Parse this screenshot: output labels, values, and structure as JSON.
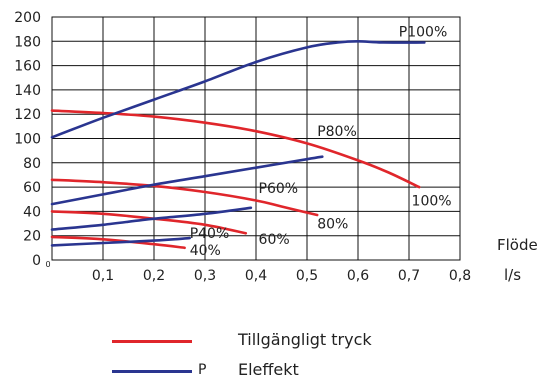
{
  "chart_data": {
    "type": "line",
    "x_ticks": [
      "0",
      "0,1",
      "0,2",
      "0,3",
      "0,4",
      "0,5",
      "0,6",
      "0,7",
      "0,8"
    ],
    "y_ticks": [
      "0",
      "20",
      "40",
      "60",
      "80",
      "100",
      "120",
      "140",
      "160",
      "180",
      "200"
    ],
    "xlim": [
      0,
      0.8
    ],
    "ylim": [
      0,
      200
    ],
    "grid": true,
    "xlabel": "Flöde",
    "xunit": "l/s",
    "colors": {
      "pressure": "#e0262b",
      "power": "#2a3590"
    },
    "series": [
      {
        "kind": "pressure",
        "points": [
          [
            0,
            123
          ],
          [
            0.1,
            121
          ],
          [
            0.2,
            118
          ],
          [
            0.3,
            113
          ],
          [
            0.4,
            106
          ],
          [
            0.5,
            96
          ],
          [
            0.6,
            82
          ],
          [
            0.66,
            72
          ],
          [
            0.72,
            60
          ]
        ]
      },
      {
        "kind": "pressure",
        "points": [
          [
            0,
            66
          ],
          [
            0.1,
            64
          ],
          [
            0.2,
            61
          ],
          [
            0.3,
            56
          ],
          [
            0.4,
            49
          ],
          [
            0.45,
            44
          ],
          [
            0.52,
            37
          ]
        ]
      },
      {
        "kind": "pressure",
        "points": [
          [
            0,
            40
          ],
          [
            0.1,
            38
          ],
          [
            0.2,
            34
          ],
          [
            0.3,
            29
          ],
          [
            0.38,
            22
          ]
        ]
      },
      {
        "kind": "pressure",
        "points": [
          [
            0,
            19
          ],
          [
            0.1,
            17
          ],
          [
            0.2,
            13
          ],
          [
            0.26,
            10
          ]
        ]
      },
      {
        "kind": "power",
        "points": [
          [
            0,
            101
          ],
          [
            0.1,
            117
          ],
          [
            0.2,
            132
          ],
          [
            0.3,
            147
          ],
          [
            0.4,
            163
          ],
          [
            0.5,
            175
          ],
          [
            0.56,
            179
          ],
          [
            0.6,
            180
          ],
          [
            0.65,
            179
          ],
          [
            0.73,
            179
          ]
        ]
      },
      {
        "kind": "power",
        "points": [
          [
            0,
            46
          ],
          [
            0.1,
            54
          ],
          [
            0.2,
            62
          ],
          [
            0.3,
            69
          ],
          [
            0.4,
            76
          ],
          [
            0.5,
            83
          ],
          [
            0.53,
            85
          ]
        ]
      },
      {
        "kind": "power",
        "points": [
          [
            0,
            25
          ],
          [
            0.1,
            29
          ],
          [
            0.2,
            34
          ],
          [
            0.3,
            38
          ],
          [
            0.39,
            43
          ]
        ]
      },
      {
        "kind": "power",
        "points": [
          [
            0,
            12
          ],
          [
            0.1,
            14
          ],
          [
            0.2,
            16
          ],
          [
            0.27,
            18
          ]
        ]
      }
    ],
    "annotations": [
      {
        "text": "P100%",
        "x": 0.68,
        "y": 184
      },
      {
        "text": "P80%",
        "x": 0.52,
        "y": 102
      },
      {
        "text": "P60%",
        "x": 0.405,
        "y": 55
      },
      {
        "text": "P40%",
        "x": 0.27,
        "y": 18
      },
      {
        "text": "100%",
        "x": 0.705,
        "y": 45
      },
      {
        "text": "80%",
        "x": 0.52,
        "y": 26
      },
      {
        "text": "60%",
        "x": 0.405,
        "y": 13
      },
      {
        "text": "40%",
        "x": 0.27,
        "y": 4
      }
    ]
  },
  "legend": [
    {
      "marker": "",
      "label": "Tillgängligt tryck",
      "color": "#e0262b"
    },
    {
      "marker": "P",
      "label": "Eleffekt",
      "color": "#2a3590"
    }
  ]
}
